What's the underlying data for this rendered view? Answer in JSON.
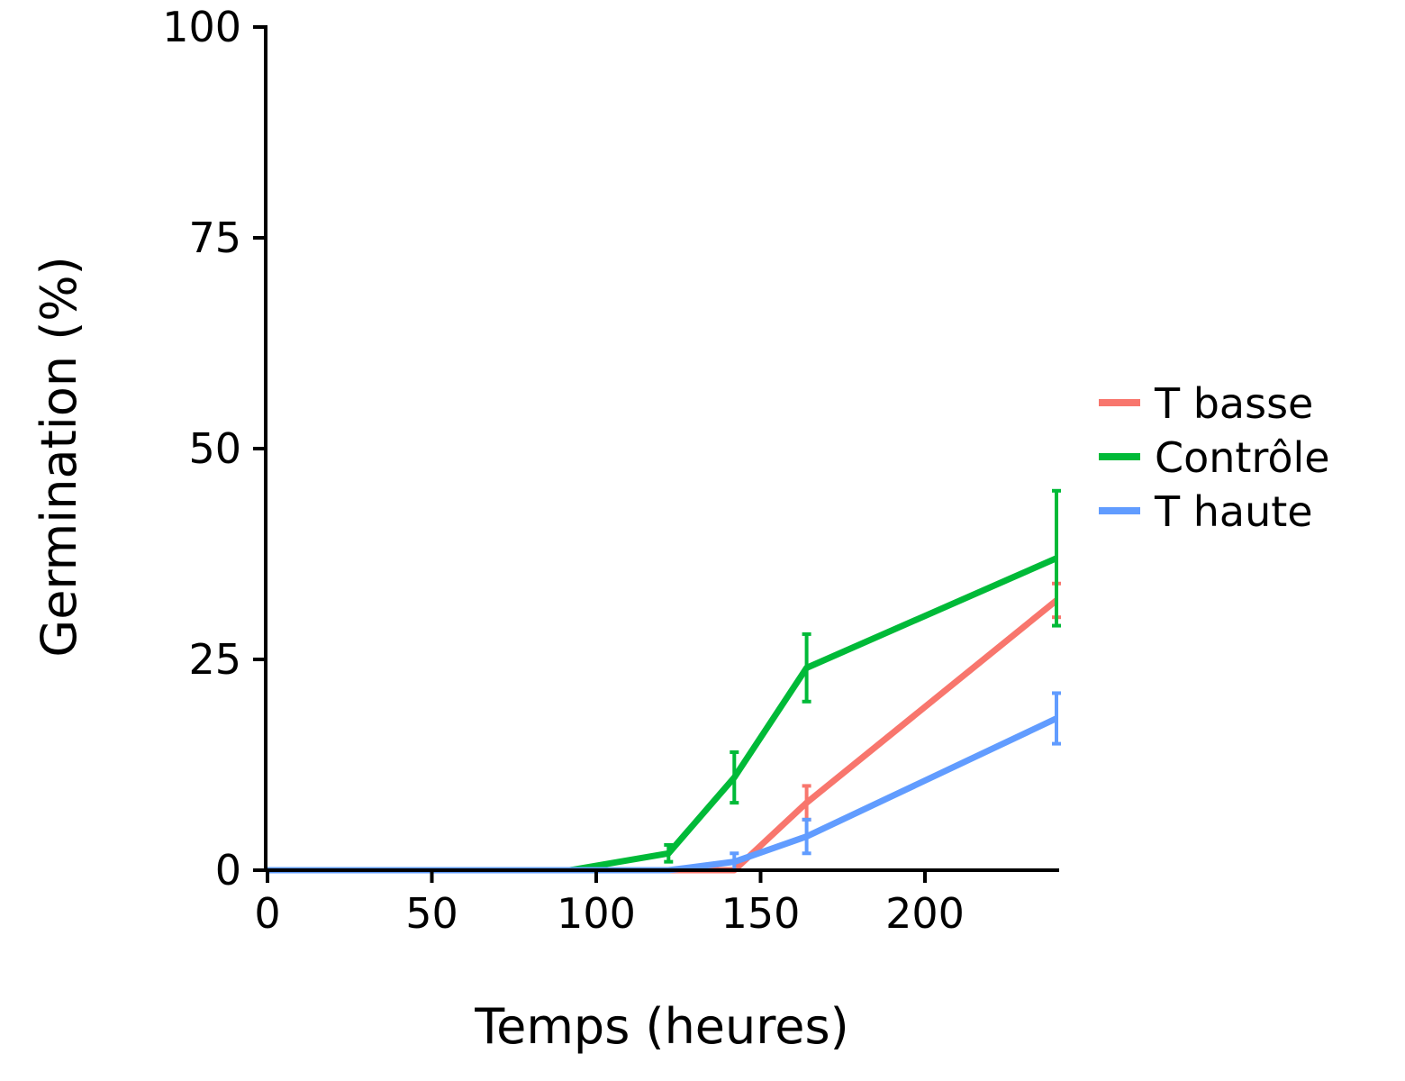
{
  "chart_data": {
    "type": "line",
    "xlabel": "Temps (heures)",
    "ylabel": "Germination (%)",
    "xlim": [
      0,
      240
    ],
    "ylim": [
      0,
      100
    ],
    "xticks": [
      0,
      50,
      100,
      150,
      200
    ],
    "yticks": [
      0,
      25,
      50,
      75,
      100
    ],
    "grid": false,
    "legend_position": "right",
    "series": [
      {
        "name": "T basse",
        "color": "#F8766D",
        "x": [
          0,
          92,
          122,
          142,
          164,
          240
        ],
        "y": [
          0,
          0,
          0,
          0,
          8,
          32
        ],
        "err": [
          0,
          0,
          0,
          0,
          2,
          2
        ]
      },
      {
        "name": "Contrôle",
        "color": "#00BA38",
        "x": [
          0,
          92,
          122,
          142,
          164,
          240
        ],
        "y": [
          0,
          0,
          2,
          11,
          24,
          37
        ],
        "err": [
          0,
          0,
          1,
          3,
          4,
          8
        ]
      },
      {
        "name": "T haute",
        "color": "#619CFF",
        "x": [
          0,
          92,
          122,
          142,
          164,
          240
        ],
        "y": [
          0,
          0,
          0,
          1,
          4,
          18
        ],
        "err": [
          0,
          0,
          0,
          1,
          2,
          3
        ]
      }
    ]
  }
}
